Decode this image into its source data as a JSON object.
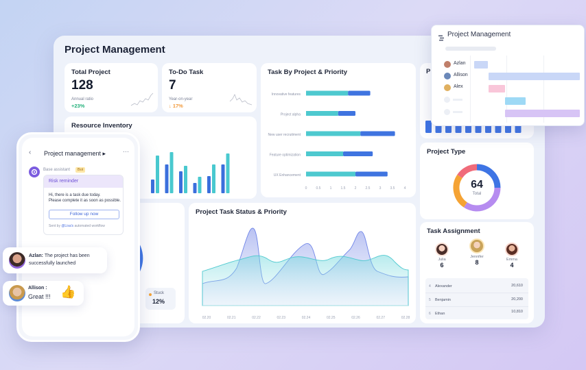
{
  "dashboard": {
    "title": "Project Management",
    "total_project": {
      "label": "Total Project",
      "value": "128",
      "sub_label": "Annual ratio",
      "delta": "+23%"
    },
    "todo_task": {
      "label": "To-Do Task",
      "value": "7",
      "sub_label": "Year-on-year",
      "delta": "↓ 17%"
    },
    "resource_inventory": {
      "title": "Resource Inventory"
    },
    "task_by_project": {
      "title": "Task By Project & Priority",
      "categories": [
        "Innovative features",
        "Project alpha",
        "New user recruitment",
        "Feature optimization",
        "UX Enhancement"
      ],
      "axis_ticks": [
        "0",
        "0.5",
        "1",
        "1.5",
        "2",
        "2.5",
        "3",
        "3.5",
        "4"
      ]
    },
    "project_type": {
      "title": "Project Type",
      "total_value": "64",
      "total_label": "Total"
    },
    "status_chart": {
      "title": "Project Task Status & Priority",
      "x_ticks": [
        "02.20",
        "02.21",
        "02.22",
        "02.23",
        "02.24",
        "02.25",
        "02.26",
        "02.27",
        "02.28"
      ]
    },
    "status_legend": {
      "label": "Stuck",
      "value": "12%"
    },
    "task_assignment": {
      "title": "Task Assignment",
      "people": [
        {
          "name": "Julia",
          "count": "6"
        },
        {
          "name": "Jennifer",
          "count": "8"
        },
        {
          "name": "Emma",
          "count": "4"
        }
      ],
      "rows": [
        {
          "index": "4",
          "name": "Alexander",
          "value": "20,610"
        },
        {
          "index": "5",
          "name": "Benjamin",
          "value": "20,200"
        },
        {
          "index": "6",
          "name": "Ethan",
          "value": "10,810"
        }
      ]
    }
  },
  "chart_data": [
    {
      "type": "bar",
      "title": "Task By Project & Priority",
      "orientation": "horizontal",
      "categories": [
        "Innovative features",
        "Project alpha",
        "New user recruitment",
        "Feature optimization",
        "UX Enhancement"
      ],
      "series": [
        {
          "values": [
            1.7,
            1.3,
            2.2,
            1.5,
            2.0
          ]
        },
        {
          "values": [
            0.9,
            0.7,
            1.4,
            1.2,
            1.3
          ]
        }
      ],
      "xlim": [
        0,
        4
      ],
      "colors": [
        "#4ec9cf",
        "#3f74e0"
      ]
    },
    {
      "type": "bar",
      "title": "Resource Inventory",
      "series": [
        {
          "values": [
            20,
            42,
            32,
            15,
            25,
            42
          ]
        },
        {
          "values": [
            55,
            60,
            40,
            24,
            42,
            58
          ]
        }
      ],
      "colors": [
        "#3a6fdc",
        "#49c9cf"
      ]
    },
    {
      "type": "pie",
      "title": "Project Type",
      "total": 64,
      "values": [
        16,
        22,
        16,
        10
      ],
      "colors": [
        "#3e74e4",
        "#b68cf0",
        "#f5a334",
        "#f06b7a"
      ]
    },
    {
      "type": "area",
      "title": "Project Task Status & Priority",
      "x": [
        "02.20",
        "02.21",
        "02.22",
        "02.23",
        "02.24",
        "02.25",
        "02.26",
        "02.27",
        "02.28"
      ],
      "colors": [
        "#4ec9cf",
        "#6f85e8"
      ]
    }
  ],
  "phone": {
    "title": "Project management ▸",
    "menu": "···",
    "assistant_name": "Base assistant",
    "bot_badge": "Bot",
    "card_header": "Risk reminder",
    "card_text_1": "Hi, there is a task due today.",
    "card_text_2": "Please complete it as soon as possible.",
    "follow_button": "Follow up now",
    "footer_sent": "Sent by",
    "footer_by": "@Lisa's",
    "footer_rest": "automated workflow"
  },
  "messages": [
    {
      "name": "Azlan:",
      "text_1": "The project has been",
      "text_2": "successfully launched"
    },
    {
      "name": "Allison :",
      "text_1": "Great !!!",
      "emoji": "👍"
    }
  ],
  "gantt": {
    "title": "Project Management",
    "people": [
      "Azlan",
      "Allison",
      "Alex"
    ],
    "colors": {
      "blue": "#c9d7f7",
      "pink": "#f9c6d9",
      "cyan": "#9ed9f5",
      "purple": "#d7c4f5"
    }
  }
}
